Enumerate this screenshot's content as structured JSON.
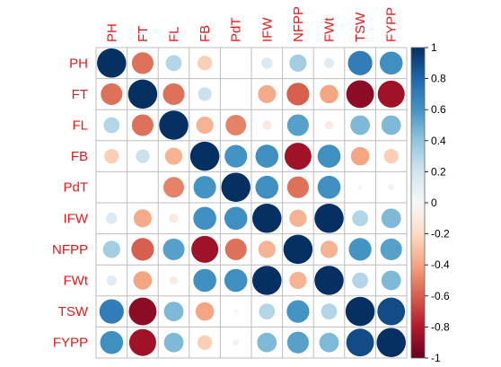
{
  "chart_data": {
    "type": "heatmap",
    "variables": [
      "PH",
      "FT",
      "FL",
      "FB",
      "PdT",
      "IFW",
      "NFPP",
      "FWt",
      "TSW",
      "FYPP"
    ],
    "matrix": [
      [
        1.0,
        -0.55,
        0.3,
        -0.25,
        0.0,
        0.15,
        0.35,
        0.12,
        0.7,
        0.62
      ],
      [
        -0.55,
        1.0,
        -0.55,
        0.22,
        0.0,
        -0.38,
        -0.6,
        -0.4,
        -0.9,
        -0.85
      ],
      [
        0.3,
        -0.55,
        1.0,
        -0.35,
        -0.5,
        -0.1,
        0.55,
        -0.08,
        0.45,
        0.45
      ],
      [
        -0.25,
        0.22,
        -0.35,
        1.0,
        0.6,
        0.62,
        -0.85,
        0.62,
        -0.4,
        -0.25
      ],
      [
        0.0,
        0.0,
        -0.5,
        0.6,
        1.0,
        0.62,
        -0.55,
        0.62,
        0.02,
        0.05
      ],
      [
        0.15,
        -0.38,
        -0.1,
        0.62,
        0.62,
        1.0,
        -0.35,
        1.0,
        0.3,
        0.45
      ],
      [
        0.35,
        -0.6,
        0.55,
        -0.85,
        -0.55,
        -0.35,
        1.0,
        -0.35,
        0.6,
        0.55
      ],
      [
        0.12,
        -0.4,
        -0.08,
        0.62,
        0.62,
        1.0,
        -0.35,
        1.0,
        0.3,
        0.45
      ],
      [
        0.7,
        -0.9,
        0.45,
        -0.4,
        0.02,
        0.3,
        0.6,
        0.3,
        1.0,
        0.9
      ],
      [
        0.62,
        -0.85,
        0.45,
        -0.25,
        0.05,
        0.45,
        0.55,
        0.45,
        0.9,
        1.0
      ]
    ],
    "color_scale": {
      "range": [
        -1,
        1
      ],
      "stops": [
        {
          "value": -1.0,
          "color": "#67001f"
        },
        {
          "value": -0.8,
          "color": "#b2182b"
        },
        {
          "value": -0.6,
          "color": "#d6604d"
        },
        {
          "value": -0.4,
          "color": "#f4a582"
        },
        {
          "value": -0.2,
          "color": "#fddbc7"
        },
        {
          "value": 0.0,
          "color": "#f7f7f7"
        },
        {
          "value": 0.2,
          "color": "#d1e5f0"
        },
        {
          "value": 0.4,
          "color": "#92c5de"
        },
        {
          "value": 0.6,
          "color": "#4393c3"
        },
        {
          "value": 0.8,
          "color": "#2166ac"
        },
        {
          "value": 1.0,
          "color": "#053061"
        }
      ]
    },
    "legend_ticks": [
      "1",
      "0.8",
      "0.6",
      "0.4",
      "0.2",
      "0",
      "-0.2",
      "-0.4",
      "-0.6",
      "-0.8",
      "-1"
    ],
    "label_color": "#e31a1c",
    "grid_color": "#bdbdbd",
    "legend_placement": "right"
  }
}
